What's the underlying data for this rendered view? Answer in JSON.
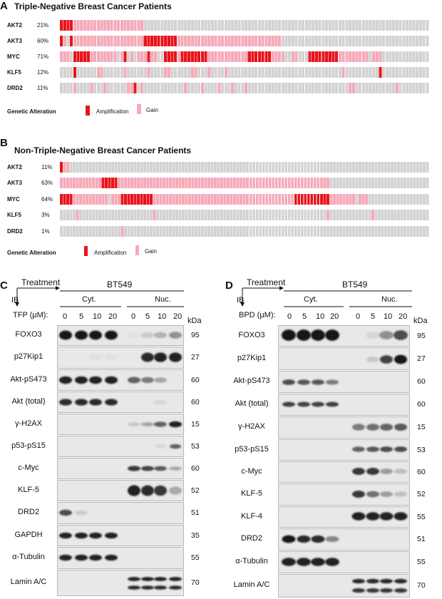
{
  "panel_a": {
    "letter": "A",
    "title": "Triple-Negative Breast Cancer Patients",
    "rows": [
      {
        "gene": "AKT2",
        "percent": "21%"
      },
      {
        "gene": "AKT3",
        "percent": "60%"
      },
      {
        "gene": "MYC",
        "percent": "71%"
      },
      {
        "gene": "KLF5",
        "percent": "12%"
      },
      {
        "gene": "DRD2",
        "percent": "11%"
      }
    ],
    "legend": {
      "title": "Genetic Alteration",
      "amplification": "Amplification",
      "gain": "Gain"
    }
  },
  "panel_b": {
    "letter": "B",
    "title": "Non-Triple-Negative Breast Cancer Patients",
    "rows": [
      {
        "gene": "AKT2",
        "percent": "11%"
      },
      {
        "gene": "AKT3",
        "percent": "63%"
      },
      {
        "gene": "MYC",
        "percent": "64%"
      },
      {
        "gene": "KLF5",
        "percent": "3%"
      },
      {
        "gene": "DRD2",
        "percent": "1%"
      }
    ],
    "legend": {
      "title": "Genetic Alteration",
      "amplification": "Amplification",
      "gain": "Gain"
    }
  },
  "panel_c": {
    "letter": "C",
    "treatment": "Treatment",
    "ib": "IB",
    "cell_line": "BT549",
    "cyt": "Cyt.",
    "nuc": "Nuc.",
    "drug_label": "TFP (μM):",
    "doses": [
      "0",
      "5",
      "10",
      "20",
      "0",
      "5",
      "10",
      "20"
    ],
    "kda_header": "kDa",
    "blots": [
      {
        "label": "FOXO3",
        "kda": "95"
      },
      {
        "label": "p27Kip1",
        "kda": "27"
      },
      {
        "label": "Akt-pS473",
        "kda": "60"
      },
      {
        "label": "Akt (total)",
        "kda": "60"
      },
      {
        "label": "γ-H2AX",
        "kda": "15"
      },
      {
        "label": "p53-pS15",
        "kda": "53"
      },
      {
        "label": "c-Myc",
        "kda": "60"
      },
      {
        "label": "KLF-5",
        "kda": "52"
      },
      {
        "label": "DRD2",
        "kda": "51"
      },
      {
        "label": "GAPDH",
        "kda": "35"
      },
      {
        "label": "α-Tubulin",
        "kda": "55"
      },
      {
        "label": "Lamin A/C",
        "kda": "70"
      }
    ]
  },
  "panel_d": {
    "letter": "D",
    "treatment": "Treatment",
    "ib": "IB",
    "cell_line": "BT549",
    "cyt": "Cyt.",
    "nuc": "Nuc.",
    "drug_label": "BPD (μM):",
    "doses": [
      "0",
      "5",
      "10",
      "20",
      "0",
      "5",
      "10",
      "20"
    ],
    "kda_header": "kDa",
    "blots": [
      {
        "label": "FOXO3",
        "kda": "95"
      },
      {
        "label": "p27Kip1",
        "kda": "27"
      },
      {
        "label": "Akt-pS473",
        "kda": "60"
      },
      {
        "label": "Akt (total)",
        "kda": "60"
      },
      {
        "label": "γ-H2AX",
        "kda": "15"
      },
      {
        "label": "p53-pS15",
        "kda": "53"
      },
      {
        "label": "c-Myc",
        "kda": "60"
      },
      {
        "label": "KLF-5",
        "kda": "52"
      },
      {
        "label": "KLF-4",
        "kda": "55"
      },
      {
        "label": "DRD2",
        "kda": "51"
      },
      {
        "label": "α-Tubulin",
        "kda": "55"
      },
      {
        "label": "Lamin A/C",
        "kda": "70"
      }
    ]
  },
  "colors": {
    "amplification": "#e8141c",
    "gain": "#f5aab8",
    "none": "#d3d3d3"
  }
}
